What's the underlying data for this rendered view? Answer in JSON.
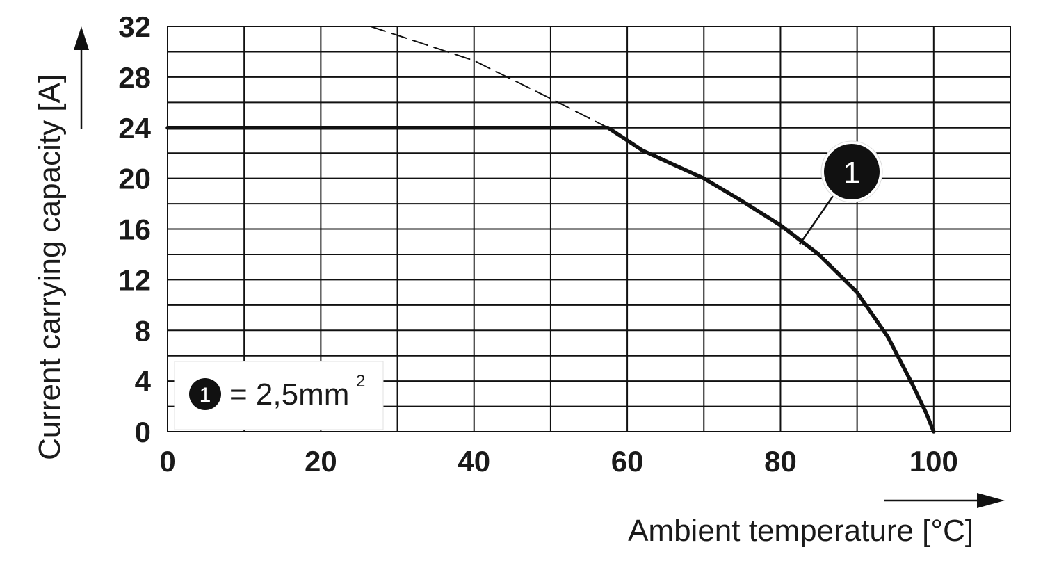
{
  "chart_data": {
    "type": "line",
    "xlabel": "Ambient temperature [°C]",
    "ylabel": "Current carrying capacity [A]",
    "xlim": [
      0,
      110
    ],
    "ylim": [
      0,
      32
    ],
    "x_ticks": [
      0,
      20,
      40,
      60,
      80,
      100
    ],
    "y_ticks": [
      0,
      4,
      8,
      12,
      16,
      20,
      24,
      28,
      32
    ],
    "grid": true,
    "series": [
      {
        "name": "1",
        "style": "solid",
        "points": [
          [
            0,
            24
          ],
          [
            57.5,
            24
          ],
          [
            62,
            22.2
          ],
          [
            70,
            20
          ],
          [
            75,
            18.2
          ],
          [
            80,
            16.3
          ],
          [
            85,
            14
          ],
          [
            90,
            11
          ],
          [
            94,
            7.5
          ],
          [
            97,
            4
          ],
          [
            99,
            1.5
          ],
          [
            100,
            0
          ]
        ]
      },
      {
        "name": "",
        "style": "dashed",
        "points": [
          [
            26.5,
            32
          ],
          [
            40,
            29.3
          ],
          [
            50,
            26.3
          ],
          [
            57.5,
            24
          ]
        ]
      }
    ],
    "callout": {
      "label": "1",
      "x": 82.5,
      "y": 14.8
    },
    "legend": {
      "marker_label": "1",
      "text": "= 2,5mm",
      "superscript": "2",
      "placement": "bottom-left"
    }
  }
}
